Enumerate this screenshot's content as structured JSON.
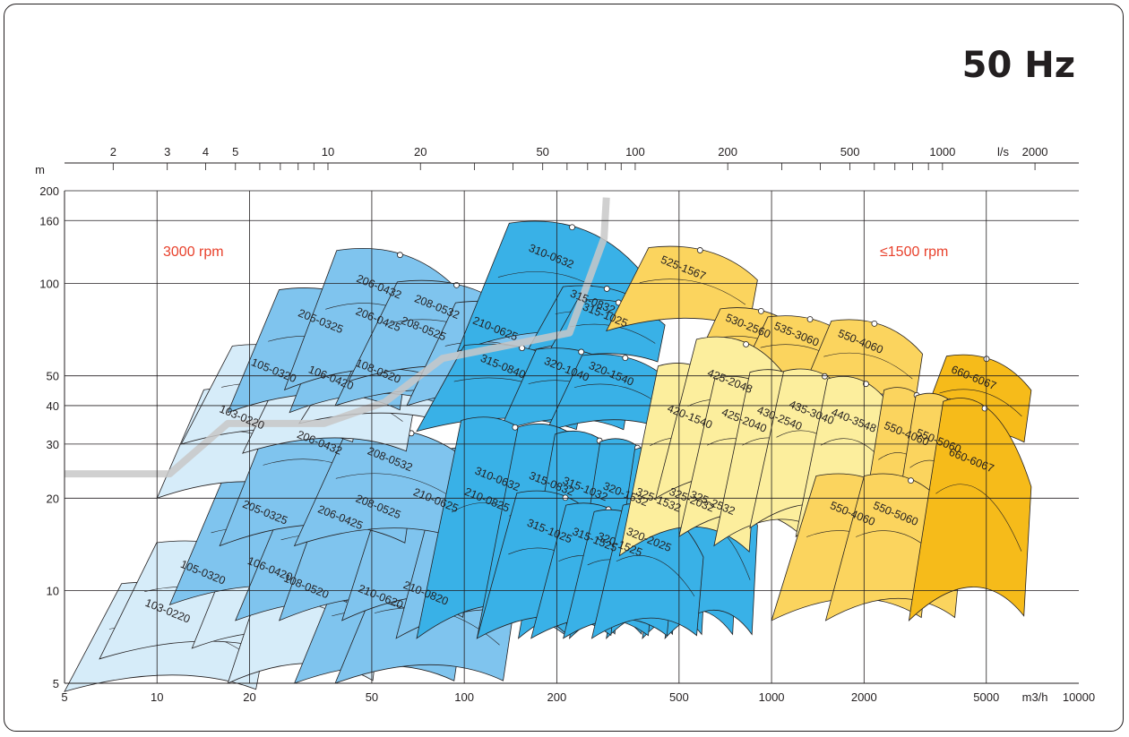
{
  "frequency_label": "50 Hz",
  "chart_data": {
    "type": "area",
    "title": "",
    "xlabel": "m3/h",
    "ylabel": "m",
    "x_secondary_label": "l/s",
    "xscale": "log",
    "yscale": "log",
    "xlim": [
      5,
      10000
    ],
    "ylim": [
      5,
      200
    ],
    "x_ticks": [
      "5",
      "10",
      "20",
      "50",
      "100",
      "200",
      "500",
      "1000",
      "2000",
      "5000",
      "10000"
    ],
    "x_unit_tick": "m3/h",
    "y_ticks": [
      "5",
      "10",
      "20",
      "30",
      "40",
      "50",
      "100",
      "160",
      "200"
    ],
    "top_ticks": [
      "2",
      "3",
      "4",
      "5",
      "10",
      "20",
      "50",
      "100",
      "200",
      "500",
      "1000",
      "2000"
    ],
    "top_unit_tick": "l/s",
    "grid": true,
    "annotations": [
      "3000 rpm",
      "≤1500 rpm"
    ],
    "boundary_line": {
      "color": "#c8c8c8",
      "points": [
        [
          5,
          24
        ],
        [
          11,
          24
        ],
        [
          17,
          35
        ],
        [
          35,
          35
        ],
        [
          55,
          41
        ],
        [
          85,
          57
        ],
        [
          130,
          62
        ],
        [
          220,
          69
        ],
        [
          285,
          140
        ],
        [
          290,
          190
        ]
      ]
    },
    "series": [
      {
        "name": "103-0220",
        "x": [
          5,
          23
        ],
        "y": [
          4.7,
          11
        ],
        "color": "#d6ecf9"
      },
      {
        "name": "105-0320",
        "x": [
          6.5,
          30
        ],
        "y": [
          6,
          15
        ],
        "color": "#d6ecf9"
      },
      {
        "name": "106-0420",
        "x": [
          13,
          41
        ],
        "y": [
          6.5,
          15
        ],
        "color": "#d6ecf9"
      },
      {
        "name": "108-0520",
        "x": [
          17,
          54
        ],
        "y": [
          5,
          14
        ],
        "color": "#d6ecf9"
      },
      {
        "name": "210-0620",
        "x": [
          28,
          100
        ],
        "y": [
          5,
          12.5
        ],
        "color": "#7fc4ee"
      },
      {
        "name": "210-0820",
        "x": [
          38,
          145
        ],
        "y": [
          5,
          13
        ],
        "color": "#7fc4ee"
      },
      {
        "name": "205-0325",
        "x": [
          11,
          45
        ],
        "y": [
          9,
          24
        ],
        "color": "#7fc4ee"
      },
      {
        "name": "206-0425",
        "x": [
          18,
          85
        ],
        "y": [
          8,
          24
        ],
        "color": "#7fc4ee"
      },
      {
        "name": "208-0525",
        "x": [
          25,
          108
        ],
        "y": [
          8,
          27
        ],
        "color": "#7fc4ee"
      },
      {
        "name": "210-0625",
        "x": [
          40,
          160
        ],
        "y": [
          8,
          29
        ],
        "color": "#7fc4ee"
      },
      {
        "name": "210-0825",
        "x": [
          60,
          230
        ],
        "y": [
          7,
          31
        ],
        "color": "#7fc4ee"
      },
      {
        "name": "103-0220",
        "x": [
          10,
          35
        ],
        "y": [
          20,
          47
        ],
        "color": "#d6ecf9"
      },
      {
        "name": "206-0432",
        "x": [
          16,
          70
        ],
        "y": [
          14,
          42
        ],
        "color": "#7fc4ee"
      },
      {
        "name": "208-0532",
        "x": [
          28,
          115
        ],
        "y": [
          14,
          35
        ],
        "color": "#7fc4ee"
      },
      {
        "name": "105-0320",
        "x": [
          12,
          47
        ],
        "y": [
          30,
          65
        ],
        "color": "#d6ecf9"
      },
      {
        "name": "106-0420",
        "x": [
          19,
          70
        ],
        "y": [
          28,
          62
        ],
        "color": "#d6ecf9"
      },
      {
        "name": "108-0520",
        "x": [
          29,
          93
        ],
        "y": [
          35,
          60
        ],
        "color": "#d6ecf9"
      },
      {
        "name": "205-0325",
        "x": [
          17,
          67
        ],
        "y": [
          38,
          100
        ],
        "color": "#7fc4ee"
      },
      {
        "name": "206-0425",
        "x": [
          27,
          100
        ],
        "y": [
          38,
          102
        ],
        "color": "#7fc4ee"
      },
      {
        "name": "208-0525",
        "x": [
          38,
          140
        ],
        "y": [
          40,
          90
        ],
        "color": "#7fc4ee"
      },
      {
        "name": "206-0432",
        "x": [
          26,
          105
        ],
        "y": [
          45,
          135
        ],
        "color": "#7fc4ee"
      },
      {
        "name": "208-0532",
        "x": [
          42,
          155
        ],
        "y": [
          48,
          105
        ],
        "color": "#7fc4ee"
      },
      {
        "name": "210-0625",
        "x": [
          65,
          240
        ],
        "y": [
          40,
          90
        ],
        "color": "#7fc4ee"
      },
      {
        "name": "310-0632",
        "x": [
          95,
          380
        ],
        "y": [
          60,
          165
        ],
        "color": "#39b1e7"
      },
      {
        "name": "315-0832",
        "x": [
          160,
          420
        ],
        "y": [
          60,
          100
        ],
        "color": "#39b1e7"
      },
      {
        "name": "315-1025",
        "x": [
          180,
          450
        ],
        "y": [
          55,
          90
        ],
        "color": "#39b1e7"
      },
      {
        "name": "315-0840",
        "x": [
          70,
          250
        ],
        "y": [
          33,
          65
        ],
        "color": "#39b1e7"
      },
      {
        "name": "320-1040",
        "x": [
          130,
          350
        ],
        "y": [
          33,
          63
        ],
        "color": "#39b1e7"
      },
      {
        "name": "320-1540",
        "x": [
          185,
          480
        ],
        "y": [
          33,
          60
        ],
        "color": "#39b1e7"
      },
      {
        "name": "310-0632",
        "x": [
          70,
          230
        ],
        "y": [
          7,
          39
        ],
        "color": "#39b1e7"
      },
      {
        "name": "315-0832",
        "x": [
          110,
          330
        ],
        "y": [
          7,
          37
        ],
        "color": "#39b1e7"
      },
      {
        "name": "315-1032",
        "x": [
          150,
          400
        ],
        "y": [
          7,
          35
        ],
        "color": "#39b1e7"
      },
      {
        "name": "320-1532",
        "x": [
          220,
          500
        ],
        "y": [
          7,
          33
        ],
        "color": "#39b1e7"
      },
      {
        "name": "325-1532",
        "x": [
          290,
          620
        ],
        "y": [
          7,
          31
        ],
        "color": "#39b1e7"
      },
      {
        "name": "325-2032",
        "x": [
          380,
          780
        ],
        "y": [
          7,
          31
        ],
        "color": "#39b1e7"
      },
      {
        "name": "325-2532",
        "x": [
          450,
          900
        ],
        "y": [
          7,
          30
        ],
        "color": "#39b1e7"
      },
      {
        "name": "315-1025",
        "x": [
          110,
          320
        ],
        "y": [
          7,
          22
        ],
        "color": "#39b1e7"
      },
      {
        "name": "315-1525",
        "x": [
          165,
          420
        ],
        "y": [
          7,
          20
        ],
        "color": "#39b1e7"
      },
      {
        "name": "320-1525",
        "x": [
          210,
          480
        ],
        "y": [
          7,
          19
        ],
        "color": "#39b1e7"
      },
      {
        "name": "320-2025",
        "x": [
          260,
          600
        ],
        "y": [
          7,
          20
        ],
        "color": "#39b1e7"
      },
      {
        "name": "525-1567",
        "x": [
          290,
          900
        ],
        "y": [
          70,
          135
        ],
        "color": "#fbd45e"
      },
      {
        "name": "530-2560",
        "x": [
          530,
          1300
        ],
        "y": [
          48,
          85
        ],
        "color": "#fbd45e"
      },
      {
        "name": "535-3060",
        "x": [
          750,
          1900
        ],
        "y": [
          45,
          80
        ],
        "color": "#fbd45e"
      },
      {
        "name": "550-4060",
        "x": [
          1200,
          3100
        ],
        "y": [
          40,
          78
        ],
        "color": "#fbd45e"
      },
      {
        "name": "660-6067",
        "x": [
          2900,
          7000
        ],
        "y": [
          30,
          60
        ],
        "color": "#f6bb1a"
      },
      {
        "name": "420-1540",
        "x": [
          320,
          900
        ],
        "y": [
          13,
          58
        ],
        "color": "#fcee9d"
      },
      {
        "name": "425-2048",
        "x": [
          420,
          1250
        ],
        "y": [
          20,
          70
        ],
        "color": "#fcee9d"
      },
      {
        "name": "425-2040",
        "x": [
          500,
          1300
        ],
        "y": [
          15,
          52
        ],
        "color": "#fcee9d"
      },
      {
        "name": "430-2540",
        "x": [
          650,
          1700
        ],
        "y": [
          14,
          55
        ],
        "color": "#fcee9d"
      },
      {
        "name": "435-3040",
        "x": [
          850,
          2100
        ],
        "y": [
          16,
          55
        ],
        "color": "#fcee9d"
      },
      {
        "name": "440-3548",
        "x": [
          1200,
          2800
        ],
        "y": [
          15,
          52
        ],
        "color": "#fcee9d"
      },
      {
        "name": "550-4060",
        "x": [
          1900,
          3900
        ],
        "y": [
          13,
          48
        ],
        "color": "#fbd45e"
      },
      {
        "name": "550-5060",
        "x": [
          2400,
          5000
        ],
        "y": [
          12,
          46
        ],
        "color": "#fbd45e"
      },
      {
        "name": "550-4060",
        "x": [
          1000,
          3300
        ],
        "y": [
          8,
          25
        ],
        "color": "#fbd45e"
      },
      {
        "name": "550-5060",
        "x": [
          1500,
          4200
        ],
        "y": [
          8,
          25
        ],
        "color": "#fbd45e"
      },
      {
        "name": "660-6067",
        "x": [
          2800,
          7000
        ],
        "y": [
          8,
          45
        ],
        "color": "#f6bb1a"
      }
    ]
  }
}
